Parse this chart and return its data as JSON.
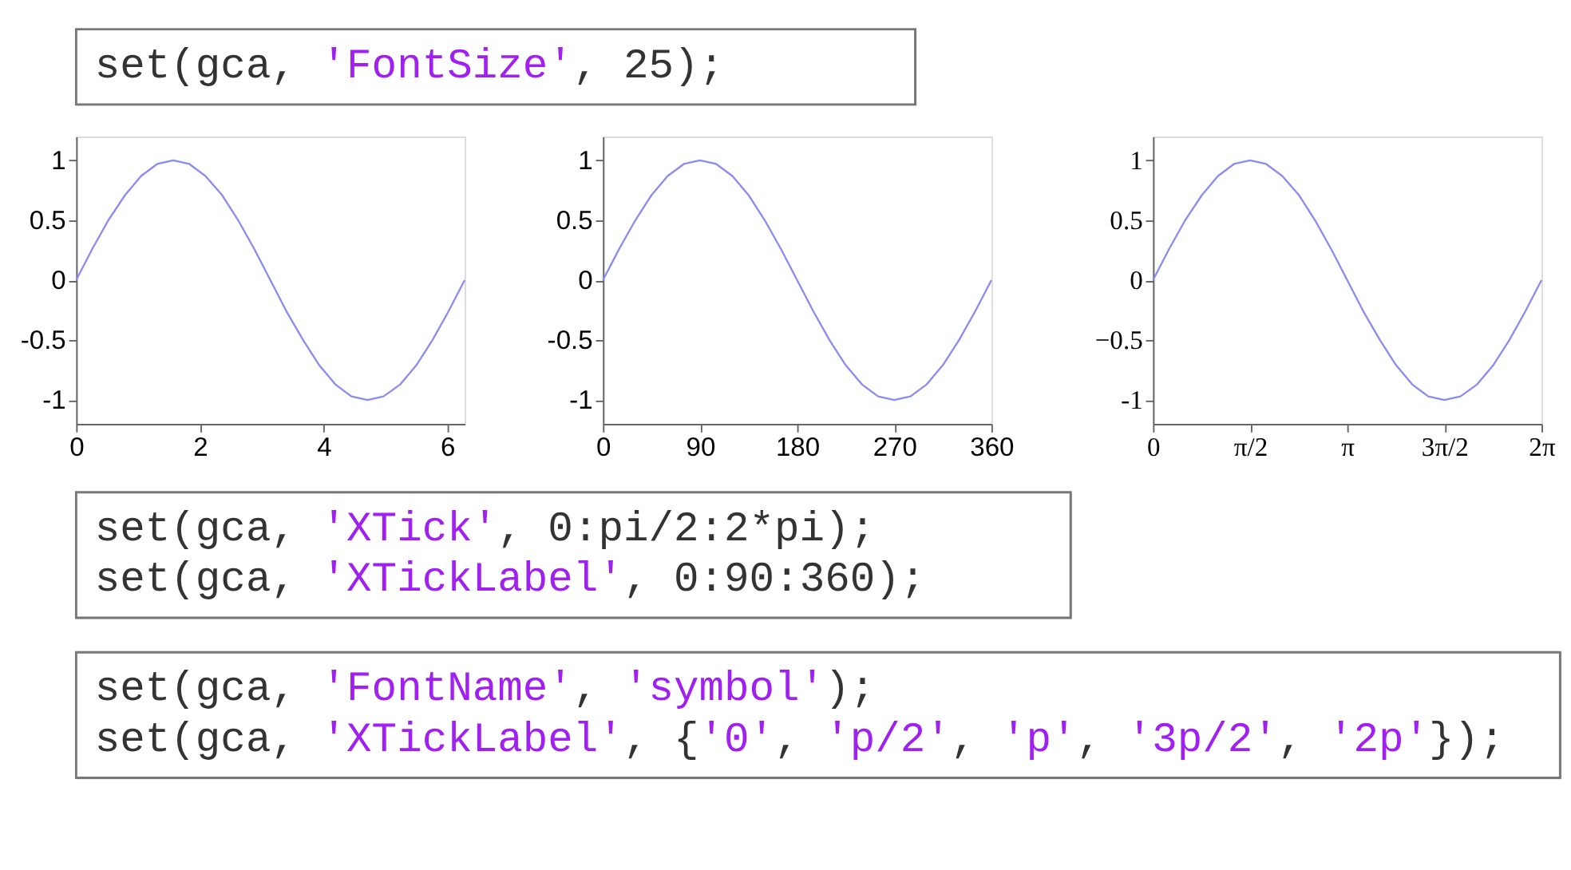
{
  "chart_data": [
    {
      "type": "line",
      "annotations": [
        "set(gca, 'FontSize', 25);"
      ],
      "x": [
        0,
        0.26,
        0.52,
        0.79,
        1.05,
        1.31,
        1.57,
        1.83,
        2.09,
        2.36,
        2.62,
        2.88,
        3.14,
        3.4,
        3.67,
        3.93,
        4.19,
        4.45,
        4.71,
        4.97,
        5.24,
        5.5,
        5.76,
        6.02,
        6.28
      ],
      "series": [
        {
          "color": "#8c8cf0",
          "values": [
            0,
            0.26,
            0.5,
            0.71,
            0.87,
            0.97,
            1,
            0.97,
            0.87,
            0.71,
            0.5,
            0.26,
            0,
            -0.26,
            -0.5,
            -0.71,
            -0.87,
            -0.97,
            -1,
            -0.97,
            -0.87,
            -0.71,
            -0.5,
            -0.26,
            0
          ]
        }
      ],
      "xlim": [
        0,
        6.28
      ],
      "xticks": [
        0,
        2,
        4,
        6
      ],
      "ylim": [
        -1.2,
        1.2
      ],
      "yticks": [
        -1,
        -0.5,
        0,
        0.5,
        1
      ],
      "grid": false,
      "marker": "none",
      "line_style": "solid"
    },
    {
      "type": "line",
      "annotations": [
        "set(gca, 'XTick', 0:pi/2:2*pi);",
        "set(gca, 'XTickLabel', 0:90:360);"
      ],
      "x": [
        0,
        15,
        30,
        45,
        60,
        75,
        90,
        105,
        120,
        135,
        150,
        165,
        180,
        195,
        210,
        225,
        240,
        255,
        270,
        285,
        300,
        315,
        330,
        345,
        360
      ],
      "series": [
        {
          "color": "#8c8cf0",
          "values": [
            0,
            0.26,
            0.5,
            0.71,
            0.87,
            0.97,
            1,
            0.97,
            0.87,
            0.71,
            0.5,
            0.26,
            0,
            -0.26,
            -0.5,
            -0.71,
            -0.87,
            -0.97,
            -1,
            -0.97,
            -0.87,
            -0.71,
            -0.5,
            -0.26,
            0
          ]
        }
      ],
      "xlim": [
        0,
        360
      ],
      "xticks": [
        0,
        90,
        180,
        270,
        360
      ],
      "ylim": [
        -1.2,
        1.2
      ],
      "yticks": [
        -1,
        -0.5,
        0,
        0.5,
        1
      ],
      "grid": false,
      "marker": "none",
      "line_style": "solid"
    },
    {
      "type": "line",
      "annotations": [
        "set(gca, 'FontName', 'symbol');",
        "set(gca, 'XTickLabel', {'0', 'p/2', 'p', '3p/2', '2p'});"
      ],
      "x": [
        0,
        0.26,
        0.52,
        0.79,
        1.05,
        1.31,
        1.57,
        1.83,
        2.09,
        2.36,
        2.62,
        2.88,
        3.14,
        3.4,
        3.67,
        3.93,
        4.19,
        4.45,
        4.71,
        4.97,
        5.24,
        5.5,
        5.76,
        6.02,
        6.28
      ],
      "series": [
        {
          "color": "#8c8cf0",
          "values": [
            0,
            0.26,
            0.5,
            0.71,
            0.87,
            0.97,
            1,
            0.97,
            0.87,
            0.71,
            0.5,
            0.26,
            0,
            -0.26,
            -0.5,
            -0.71,
            -0.87,
            -0.97,
            -1,
            -0.97,
            -0.87,
            -0.71,
            -0.5,
            -0.26,
            0
          ]
        }
      ],
      "xlim": [
        0,
        6.28
      ],
      "xticks": [
        0,
        {
          "value": 1.57,
          "label": "π/2"
        },
        {
          "value": 3.14,
          "label": "π"
        },
        {
          "value": 4.71,
          "label": "3π/2"
        },
        {
          "value": 6.28,
          "label": "2π"
        }
      ],
      "ylim": [
        -1.2,
        1.2
      ],
      "yticks": [
        -1,
        {
          "value": -0.5,
          "label": "−0.5"
        },
        0,
        0.5,
        1
      ],
      "grid": false,
      "marker": "none",
      "line_style": "solid"
    }
  ]
}
